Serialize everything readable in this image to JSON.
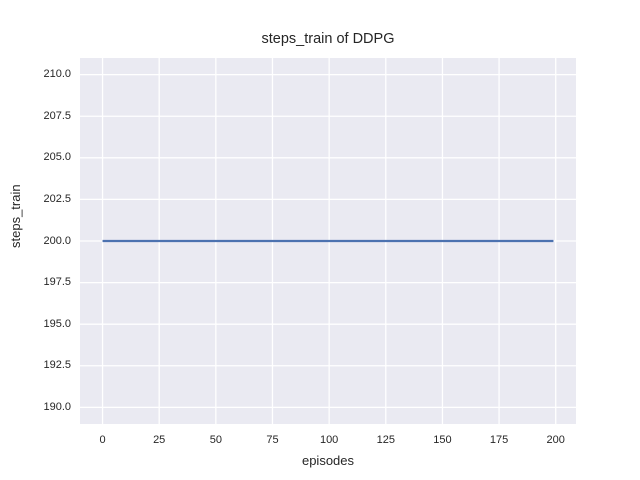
{
  "chart_data": {
    "type": "line",
    "title": "steps_train of DDPG",
    "xlabel": "episodes",
    "ylabel": "steps_train",
    "xlim": [
      -9.95,
      208.95
    ],
    "ylim": [
      189.0,
      211.0
    ],
    "xticks": [
      0,
      25,
      50,
      75,
      100,
      125,
      150,
      175,
      200
    ],
    "xtick_labels": [
      "0",
      "25",
      "50",
      "75",
      "100",
      "125",
      "150",
      "175",
      "200"
    ],
    "yticks": [
      190.0,
      192.5,
      195.0,
      197.5,
      200.0,
      202.5,
      205.0,
      207.5,
      210.0
    ],
    "ytick_labels": [
      "190.0",
      "192.5",
      "195.0",
      "197.5",
      "200.0",
      "202.5",
      "205.0",
      "207.5",
      "210.0"
    ],
    "grid": true,
    "legend": false,
    "style": {
      "figure_bg": "#ffffff",
      "plot_bg": "#eaeaf2",
      "grid_color": "#ffffff",
      "text_color": "#262626",
      "line_color": "#4c72b0",
      "line_width": 2.2
    },
    "series": [
      {
        "name": "steps_train",
        "color": "#4c72b0",
        "x": [
          0,
          199
        ],
        "y": [
          200,
          200
        ]
      }
    ]
  }
}
